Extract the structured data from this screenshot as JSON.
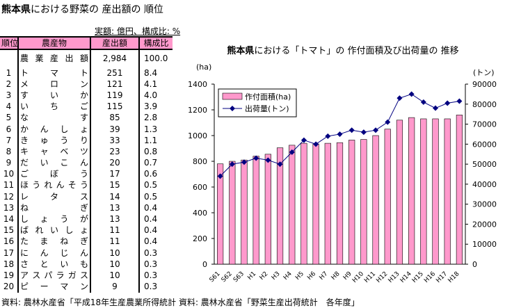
{
  "page": {
    "title_bold": "熊本県",
    "title_rest": "における野菜の 産出額の 順位",
    "unit_note": "実額: 億円、構成比: %",
    "source": "資料: 農林水産省「平成18年生産農業所得統計 資料: 農林水産省「野菜生産出荷統計　各年度」"
  },
  "table": {
    "headers": [
      "順位",
      "農産物",
      "産出額",
      "構成比"
    ],
    "total": {
      "name": "農業産出額",
      "value": "2,984",
      "share": "100.0"
    },
    "rows": [
      [
        "1",
        "トマト",
        "251",
        "8.4"
      ],
      [
        "2",
        "メロン",
        "121",
        "4.1"
      ],
      [
        "3",
        "すいか",
        "119",
        "4.0"
      ],
      [
        "4",
        "いちご",
        "115",
        "3.9"
      ],
      [
        "5",
        "なす",
        "85",
        "2.8"
      ],
      [
        "6",
        "かんしょ",
        "39",
        "1.3"
      ],
      [
        "7",
        "きゅうり",
        "33",
        "1.1"
      ],
      [
        "8",
        "キャベツ",
        "23",
        "0.8"
      ],
      [
        "9",
        "だいこん",
        "20",
        "0.7"
      ],
      [
        "10",
        "ごぼう",
        "17",
        "0.6"
      ],
      [
        "11",
        "ほうれんそう",
        "15",
        "0.5"
      ],
      [
        "12",
        "レタス",
        "14",
        "0.5"
      ],
      [
        "13",
        "ねぎ",
        "13",
        "0.4"
      ],
      [
        "14",
        "しょうが",
        "13",
        "0.4"
      ],
      [
        "15",
        "ばれいしょ",
        "11",
        "0.4"
      ],
      [
        "16",
        "たまねぎ",
        "11",
        "0.4"
      ],
      [
        "17",
        "にんじん",
        "10",
        "0.3"
      ],
      [
        "18",
        "さといも",
        "10",
        "0.3"
      ],
      [
        "19",
        "アスパラガス",
        "10",
        "0.3"
      ],
      [
        "20",
        "ピーマン",
        "9",
        "0.3"
      ]
    ]
  },
  "chart_data": {
    "type": "bar+line",
    "title_bold": "熊本県",
    "title_rest": "における「トマト」の 作付面積及び出荷量の 推移",
    "ylabel_left": "(ha)",
    "ylabel_right": "(トン)",
    "ylim_left": [
      0,
      1400
    ],
    "ylim_right": [
      0,
      90000
    ],
    "yticks_left": [
      0,
      200,
      400,
      600,
      800,
      1000,
      1200,
      1400
    ],
    "yticks_right": [
      0,
      10000,
      20000,
      30000,
      40000,
      50000,
      60000,
      70000,
      80000,
      90000
    ],
    "categories": [
      "S61",
      "S62",
      "S63",
      "H1",
      "H2",
      "H3",
      "H4",
      "H5",
      "H6",
      "H7",
      "H8",
      "H9",
      "H10",
      "H11",
      "H12",
      "H13",
      "H14",
      "H15",
      "H16",
      "H17",
      "H18"
    ],
    "series": [
      {
        "name": "作付面積(ha)",
        "type": "bar",
        "axis": "left",
        "color": "#ff99cc",
        "values": [
          780,
          800,
          810,
          840,
          855,
          905,
          925,
          940,
          935,
          940,
          945,
          965,
          970,
          1000,
          1050,
          1120,
          1140,
          1130,
          1130,
          1130,
          1160
        ]
      },
      {
        "name": "出荷量(トン)",
        "type": "line",
        "axis": "right",
        "color": "#000080",
        "values": [
          44000,
          50000,
          51000,
          53000,
          52000,
          50000,
          56000,
          62000,
          60000,
          64000,
          65000,
          67000,
          66000,
          67000,
          71000,
          83000,
          85000,
          81000,
          78000,
          80500,
          81500
        ]
      }
    ],
    "legend": "top-left"
  }
}
